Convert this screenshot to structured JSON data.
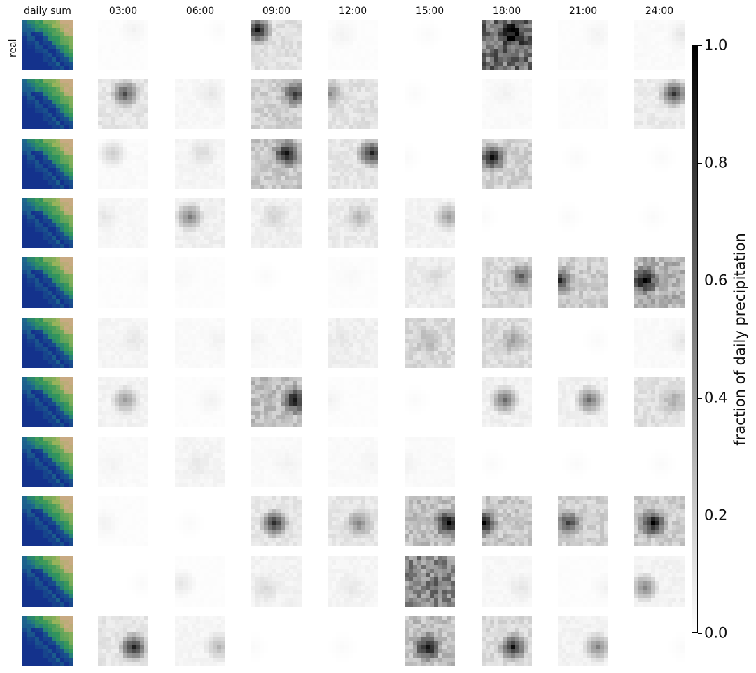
{
  "chart_data": {
    "type": "heatmap",
    "columns": [
      "daily sum",
      "03:00",
      "06:00",
      "09:00",
      "12:00",
      "15:00",
      "18:00",
      "21:00",
      "24:00"
    ],
    "row_labels": [
      "real",
      "",
      "",
      "",
      "",
      "",
      "",
      "",
      "",
      "",
      ""
    ],
    "colorbar": {
      "label": "fraction of daily precipitation",
      "range": [
        0.0,
        1.0
      ],
      "ticks": [
        "0.0",
        "0.2",
        "0.4",
        "0.6",
        "0.8",
        "1.0"
      ],
      "colormap": "gray_r"
    },
    "daily_sum_colormap": "gist_earth",
    "note_values": "approximate mean fraction of daily precipitation per panel (rows top to bottom, columns 03:00 to 24:00)",
    "panel_mean_fraction": [
      [
        0.01,
        0.0,
        0.12,
        0.01,
        0.0,
        0.55,
        0.01,
        0.02
      ],
      [
        0.1,
        0.03,
        0.18,
        0.12,
        0.0,
        0.02,
        0.01,
        0.08
      ],
      [
        0.02,
        0.04,
        0.22,
        0.1,
        0.0,
        0.18,
        0.0,
        0.0
      ],
      [
        0.03,
        0.06,
        0.06,
        0.08,
        0.05,
        0.0,
        0.0,
        0.0
      ],
      [
        0.01,
        0.01,
        0.0,
        0.01,
        0.07,
        0.15,
        0.2,
        0.3
      ],
      [
        0.04,
        0.02,
        0.02,
        0.06,
        0.15,
        0.14,
        0.0,
        0.02
      ],
      [
        0.05,
        0.01,
        0.25,
        0.01,
        0.0,
        0.06,
        0.06,
        0.12
      ],
      [
        0.02,
        0.04,
        0.02,
        0.02,
        0.02,
        0.0,
        0.0,
        0.0
      ],
      [
        0.01,
        0.0,
        0.1,
        0.1,
        0.25,
        0.22,
        0.18,
        0.2
      ],
      [
        0.0,
        0.01,
        0.05,
        0.04,
        0.45,
        0.03,
        0.01,
        0.05
      ],
      [
        0.1,
        0.04,
        0.0,
        0.0,
        0.25,
        0.15,
        0.05,
        0.0
      ]
    ],
    "panel_max_fraction": [
      [
        0.05,
        0.02,
        0.95,
        0.05,
        0.02,
        1.0,
        0.05,
        0.1
      ],
      [
        0.7,
        0.1,
        0.8,
        0.45,
        0.02,
        0.05,
        0.02,
        0.8
      ],
      [
        0.2,
        0.15,
        0.95,
        0.9,
        0.02,
        1.0,
        0.02,
        0.02
      ],
      [
        0.1,
        0.5,
        0.2,
        0.3,
        0.4,
        0.02,
        0.02,
        0.02
      ],
      [
        0.03,
        0.03,
        0.02,
        0.03,
        0.15,
        0.6,
        0.8,
        1.0
      ],
      [
        0.1,
        0.05,
        0.05,
        0.1,
        0.3,
        0.4,
        0.02,
        0.1
      ],
      [
        0.4,
        0.05,
        0.95,
        0.05,
        0.02,
        0.6,
        0.6,
        0.35
      ],
      [
        0.05,
        0.1,
        0.05,
        0.05,
        0.05,
        0.02,
        0.02,
        0.02
      ],
      [
        0.05,
        0.02,
        0.85,
        0.5,
        1.0,
        0.95,
        0.75,
        1.0
      ],
      [
        0.02,
        0.1,
        0.15,
        0.1,
        0.55,
        0.1,
        0.05,
        0.5
      ],
      [
        0.9,
        0.3,
        0.02,
        0.02,
        1.0,
        0.9,
        0.5,
        0.02
      ]
    ]
  }
}
